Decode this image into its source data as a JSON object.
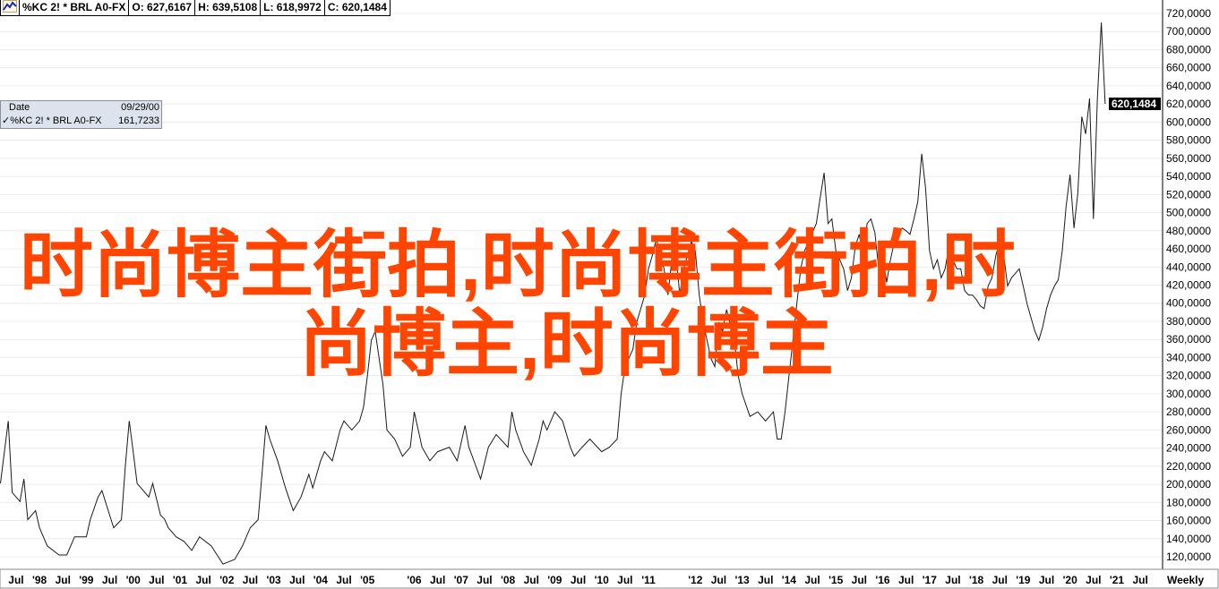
{
  "header": {
    "icon": "line-chart-icon",
    "symbol": "%KC 2! * BRL A0-FX",
    "open": "O: 627,6167",
    "high": "H: 639,5108",
    "low": "L: 618,9972",
    "close": "C: 620,1484"
  },
  "tooltip": {
    "date_label": "Date",
    "date_value": "09/29/00",
    "series_label": "%KC 2! * BRL A0-FX",
    "series_value": "161,7233",
    "check_icon": "checkmark-icon"
  },
  "overlay_text": {
    "line1": "时尚博主街拍,时尚博主街拍,时",
    "line2": "尚博主,时尚博主",
    "color": "#ff4500"
  },
  "periodicity": "Weekly",
  "chart_data": {
    "type": "line",
    "title": "",
    "xlabel": "",
    "ylabel": "",
    "ylim": [
      110,
      725
    ],
    "y_axis_position": "right",
    "y_ticks": [
      120,
      140,
      160,
      180,
      200,
      220,
      240,
      260,
      280,
      300,
      320,
      340,
      360,
      380,
      400,
      420,
      440,
      460,
      480,
      500,
      520,
      540,
      560,
      580,
      600,
      620,
      640,
      660,
      680,
      700,
      720
    ],
    "last_value_label": "620,1484",
    "grid": "horizontal",
    "line_color": "#1a1a1a",
    "x_tick_labels": [
      {
        "text": "Jul",
        "date": "1997-07"
      },
      {
        "text": "'98",
        "date": "1998-01"
      },
      {
        "text": "Jul",
        "date": "1998-07"
      },
      {
        "text": "'99",
        "date": "1999-01"
      },
      {
        "text": "Jul",
        "date": "1999-07"
      },
      {
        "text": "'00",
        "date": "2000-01"
      },
      {
        "text": "Jul",
        "date": "2000-07"
      },
      {
        "text": "'01",
        "date": "2001-01"
      },
      {
        "text": "Jul",
        "date": "2001-07"
      },
      {
        "text": "'02",
        "date": "2002-01"
      },
      {
        "text": "Jul",
        "date": "2002-07"
      },
      {
        "text": "'03",
        "date": "2003-01"
      },
      {
        "text": "Jul",
        "date": "2003-07"
      },
      {
        "text": "'04",
        "date": "2004-01"
      },
      {
        "text": "Jul",
        "date": "2004-07"
      },
      {
        "text": "'05",
        "date": "2005-01"
      },
      {
        "text": "'06",
        "date": "2006-01"
      },
      {
        "text": "Jul",
        "date": "2006-07"
      },
      {
        "text": "'07",
        "date": "2007-01"
      },
      {
        "text": "Jul",
        "date": "2007-07"
      },
      {
        "text": "'08",
        "date": "2008-01"
      },
      {
        "text": "Jul",
        "date": "2008-07"
      },
      {
        "text": "'09",
        "date": "2009-01"
      },
      {
        "text": "Jul",
        "date": "2009-07"
      },
      {
        "text": "'10",
        "date": "2010-01"
      },
      {
        "text": "Jul",
        "date": "2010-07"
      },
      {
        "text": "'11",
        "date": "2011-01"
      },
      {
        "text": "'12",
        "date": "2012-01"
      },
      {
        "text": "Jul",
        "date": "2012-07"
      },
      {
        "text": "'13",
        "date": "2013-01"
      },
      {
        "text": "Jul",
        "date": "2013-07"
      },
      {
        "text": "'14",
        "date": "2014-01"
      },
      {
        "text": "Jul",
        "date": "2014-07"
      },
      {
        "text": "'15",
        "date": "2015-01"
      },
      {
        "text": "Jul",
        "date": "2015-07"
      },
      {
        "text": "'16",
        "date": "2016-01"
      },
      {
        "text": "Jul",
        "date": "2016-07"
      },
      {
        "text": "'17",
        "date": "2017-01"
      },
      {
        "text": "Jul",
        "date": "2017-07"
      },
      {
        "text": "'18",
        "date": "2018-01"
      },
      {
        "text": "Jul",
        "date": "2018-07"
      },
      {
        "text": "'19",
        "date": "2019-01"
      },
      {
        "text": "Jul",
        "date": "2019-07"
      },
      {
        "text": "'20",
        "date": "2020-01"
      },
      {
        "text": "Jul",
        "date": "2020-07"
      },
      {
        "text": "'21",
        "date": "2021-01"
      },
      {
        "text": "Jul",
        "date": "2021-07"
      }
    ],
    "series": [
      {
        "points": [
          [
            "1997-03",
            201
          ],
          [
            "1997-05",
            270
          ],
          [
            "1997-06",
            191
          ],
          [
            "1997-08",
            181
          ],
          [
            "1997-09",
            206
          ],
          [
            "1997-10",
            161
          ],
          [
            "1997-12",
            171
          ],
          [
            "1998-01",
            152
          ],
          [
            "1998-03",
            132
          ],
          [
            "1998-06",
            122
          ],
          [
            "1998-08",
            122
          ],
          [
            "1998-10",
            142
          ],
          [
            "1999-01",
            142
          ],
          [
            "1999-02",
            161
          ],
          [
            "1999-04",
            186
          ],
          [
            "1999-05",
            193
          ],
          [
            "1999-08",
            152
          ],
          [
            "1999-10",
            161
          ],
          [
            "1999-11",
            221
          ],
          [
            "1999-12",
            270
          ],
          [
            "2000-01",
            236
          ],
          [
            "2000-02",
            201
          ],
          [
            "2000-05",
            186
          ],
          [
            "2000-06",
            201
          ],
          [
            "2000-08",
            166
          ],
          [
            "2000-09",
            161.7233
          ],
          [
            "2000-10",
            152
          ],
          [
            "2000-12",
            142
          ],
          [
            "2001-02",
            137
          ],
          [
            "2001-04",
            127
          ],
          [
            "2001-06",
            142
          ],
          [
            "2001-09",
            132
          ],
          [
            "2001-12",
            112
          ],
          [
            "2002-03",
            117
          ],
          [
            "2002-05",
            132
          ],
          [
            "2002-07",
            152
          ],
          [
            "2002-09",
            161
          ],
          [
            "2002-10",
            211
          ],
          [
            "2002-11",
            265
          ],
          [
            "2002-12",
            250
          ],
          [
            "2003-02",
            226
          ],
          [
            "2003-04",
            196
          ],
          [
            "2003-06",
            171
          ],
          [
            "2003-08",
            186
          ],
          [
            "2003-10",
            211
          ],
          [
            "2003-11",
            196
          ],
          [
            "2004-01",
            226
          ],
          [
            "2004-02",
            236
          ],
          [
            "2004-04",
            226
          ],
          [
            "2004-06",
            260
          ],
          [
            "2004-07",
            270
          ],
          [
            "2004-09",
            260
          ],
          [
            "2004-11",
            270
          ],
          [
            "2004-12",
            285
          ],
          [
            "2005-01",
            320
          ],
          [
            "2005-02",
            359
          ],
          [
            "2005-03",
            369
          ],
          [
            "2005-04",
            339
          ],
          [
            "2005-05",
            310
          ],
          [
            "2005-06",
            260
          ],
          [
            "2005-08",
            250
          ],
          [
            "2005-10",
            231
          ],
          [
            "2005-12",
            241
          ],
          [
            "2006-01",
            280
          ],
          [
            "2006-03",
            241
          ],
          [
            "2006-05",
            226
          ],
          [
            "2006-07",
            236
          ],
          [
            "2006-10",
            241
          ],
          [
            "2006-12",
            226
          ],
          [
            "2007-02",
            265
          ],
          [
            "2007-03",
            241
          ],
          [
            "2007-06",
            206
          ],
          [
            "2007-08",
            241
          ],
          [
            "2007-10",
            255
          ],
          [
            "2008-01",
            241
          ],
          [
            "2008-02",
            280
          ],
          [
            "2008-03",
            260
          ],
          [
            "2008-05",
            236
          ],
          [
            "2008-07",
            221
          ],
          [
            "2008-09",
            250
          ],
          [
            "2008-10",
            270
          ],
          [
            "2008-11",
            260
          ],
          [
            "2009-01",
            280
          ],
          [
            "2009-03",
            270
          ],
          [
            "2009-05",
            241
          ],
          [
            "2009-06",
            231
          ],
          [
            "2009-08",
            241
          ],
          [
            "2009-10",
            250
          ],
          [
            "2010-01",
            236
          ],
          [
            "2010-03",
            241
          ],
          [
            "2010-05",
            250
          ],
          [
            "2010-06",
            300
          ],
          [
            "2010-07",
            330
          ],
          [
            "2010-09",
            349
          ],
          [
            "2010-10",
            379
          ],
          [
            "2010-12",
            408
          ],
          [
            "2011-01",
            438
          ],
          [
            "2011-02",
            453
          ],
          [
            "2011-03",
            471
          ],
          [
            "2011-05",
            438
          ],
          [
            "2011-06",
            409
          ],
          [
            "2011-07",
            448
          ],
          [
            "2011-08",
            458
          ],
          [
            "2011-09",
            409
          ],
          [
            "2011-10",
            438
          ],
          [
            "2011-12",
            468
          ],
          [
            "2012-01",
            458
          ],
          [
            "2012-02",
            409
          ],
          [
            "2012-03",
            379
          ],
          [
            "2012-04",
            359
          ],
          [
            "2012-05",
            339
          ],
          [
            "2012-06",
            330
          ],
          [
            "2012-07",
            379
          ],
          [
            "2012-08",
            369
          ],
          [
            "2012-09",
            393
          ],
          [
            "2012-11",
            359
          ],
          [
            "2012-12",
            320
          ],
          [
            "2013-01",
            300
          ],
          [
            "2013-03",
            275
          ],
          [
            "2013-05",
            280
          ],
          [
            "2013-07",
            270
          ],
          [
            "2013-09",
            280
          ],
          [
            "2013-10",
            250
          ],
          [
            "2013-11",
            250
          ],
          [
            "2013-12",
            280
          ],
          [
            "2014-01",
            320
          ],
          [
            "2014-02",
            359
          ],
          [
            "2014-03",
            399
          ],
          [
            "2014-04",
            438
          ],
          [
            "2014-05",
            458
          ],
          [
            "2014-06",
            468
          ],
          [
            "2014-08",
            488
          ],
          [
            "2014-09",
            517
          ],
          [
            "2014-10",
            544
          ],
          [
            "2014-11",
            488
          ],
          [
            "2014-12",
            493
          ],
          [
            "2015-01",
            458
          ],
          [
            "2015-02",
            448
          ],
          [
            "2015-03",
            438
          ],
          [
            "2015-04",
            414
          ],
          [
            "2015-05",
            428
          ],
          [
            "2015-06",
            463
          ],
          [
            "2015-07",
            476
          ],
          [
            "2015-08",
            453
          ],
          [
            "2015-09",
            488
          ],
          [
            "2015-10",
            493
          ],
          [
            "2015-11",
            478
          ],
          [
            "2015-12",
            438
          ],
          [
            "2016-01",
            453
          ],
          [
            "2016-02",
            423
          ],
          [
            "2016-03",
            448
          ],
          [
            "2016-04",
            468
          ],
          [
            "2016-05",
            476
          ],
          [
            "2016-06",
            483
          ],
          [
            "2016-07",
            480
          ],
          [
            "2016-08",
            476
          ],
          [
            "2016-09",
            493
          ],
          [
            "2016-10",
            512
          ],
          [
            "2016-11",
            565
          ],
          [
            "2016-12",
            527
          ],
          [
            "2017-01",
            458
          ],
          [
            "2017-02",
            438
          ],
          [
            "2017-03",
            448
          ],
          [
            "2017-04",
            428
          ],
          [
            "2017-05",
            438
          ],
          [
            "2017-06",
            463
          ],
          [
            "2017-07",
            448
          ],
          [
            "2017-08",
            438
          ],
          [
            "2017-09",
            438
          ],
          [
            "2017-10",
            414
          ],
          [
            "2017-11",
            409
          ],
          [
            "2017-12",
            409
          ],
          [
            "2018-01",
            404
          ],
          [
            "2018-02",
            397
          ],
          [
            "2018-03",
            394
          ],
          [
            "2018-04",
            419
          ],
          [
            "2018-05",
            428
          ],
          [
            "2018-06",
            453
          ],
          [
            "2018-07",
            468
          ],
          [
            "2018-08",
            453
          ],
          [
            "2018-09",
            419
          ],
          [
            "2018-10",
            428
          ],
          [
            "2018-11",
            433
          ],
          [
            "2018-12",
            438
          ],
          [
            "2019-01",
            419
          ],
          [
            "2019-02",
            399
          ],
          [
            "2019-03",
            384
          ],
          [
            "2019-04",
            369
          ],
          [
            "2019-05",
            359
          ],
          [
            "2019-06",
            374
          ],
          [
            "2019-07",
            394
          ],
          [
            "2019-08",
            409
          ],
          [
            "2019-09",
            419
          ],
          [
            "2019-10",
            426
          ],
          [
            "2019-11",
            458
          ],
          [
            "2019-12",
            507
          ],
          [
            "2020-01",
            542
          ],
          [
            "2020-02",
            483
          ],
          [
            "2020-03",
            522
          ],
          [
            "2020-04",
            606
          ],
          [
            "2020-05",
            587
          ],
          [
            "2020-06",
            626
          ],
          [
            "2020-07",
            493
          ],
          [
            "2020-08",
            626
          ],
          [
            "2020-09",
            710
          ],
          [
            "2020-10",
            620.1484
          ]
        ]
      }
    ]
  }
}
